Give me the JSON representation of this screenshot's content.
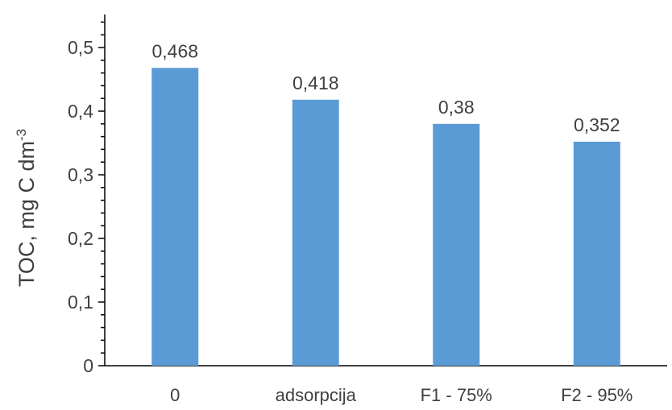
{
  "chart_data": {
    "type": "bar",
    "categories": [
      "0",
      "adsorpcija",
      "F1 - 75%",
      "F2 - 95%"
    ],
    "values": [
      0.468,
      0.418,
      0.38,
      0.352
    ],
    "value_labels": [
      "0,468",
      "0,418",
      "0,38",
      "0,352"
    ],
    "title": "",
    "xlabel": "",
    "ylabel": "TOC, mg C dm",
    "ylabel_superscript": "-3",
    "ylim": [
      0,
      0.5
    ],
    "yticks": [
      0,
      0.1,
      0.2,
      0.3,
      0.4,
      0.5
    ],
    "ytick_labels": [
      "0",
      "0,1",
      "0,2",
      "0,3",
      "0,4",
      "0,5"
    ],
    "bar_color": "#5B9BD5",
    "grid": false,
    "legend": "none"
  }
}
